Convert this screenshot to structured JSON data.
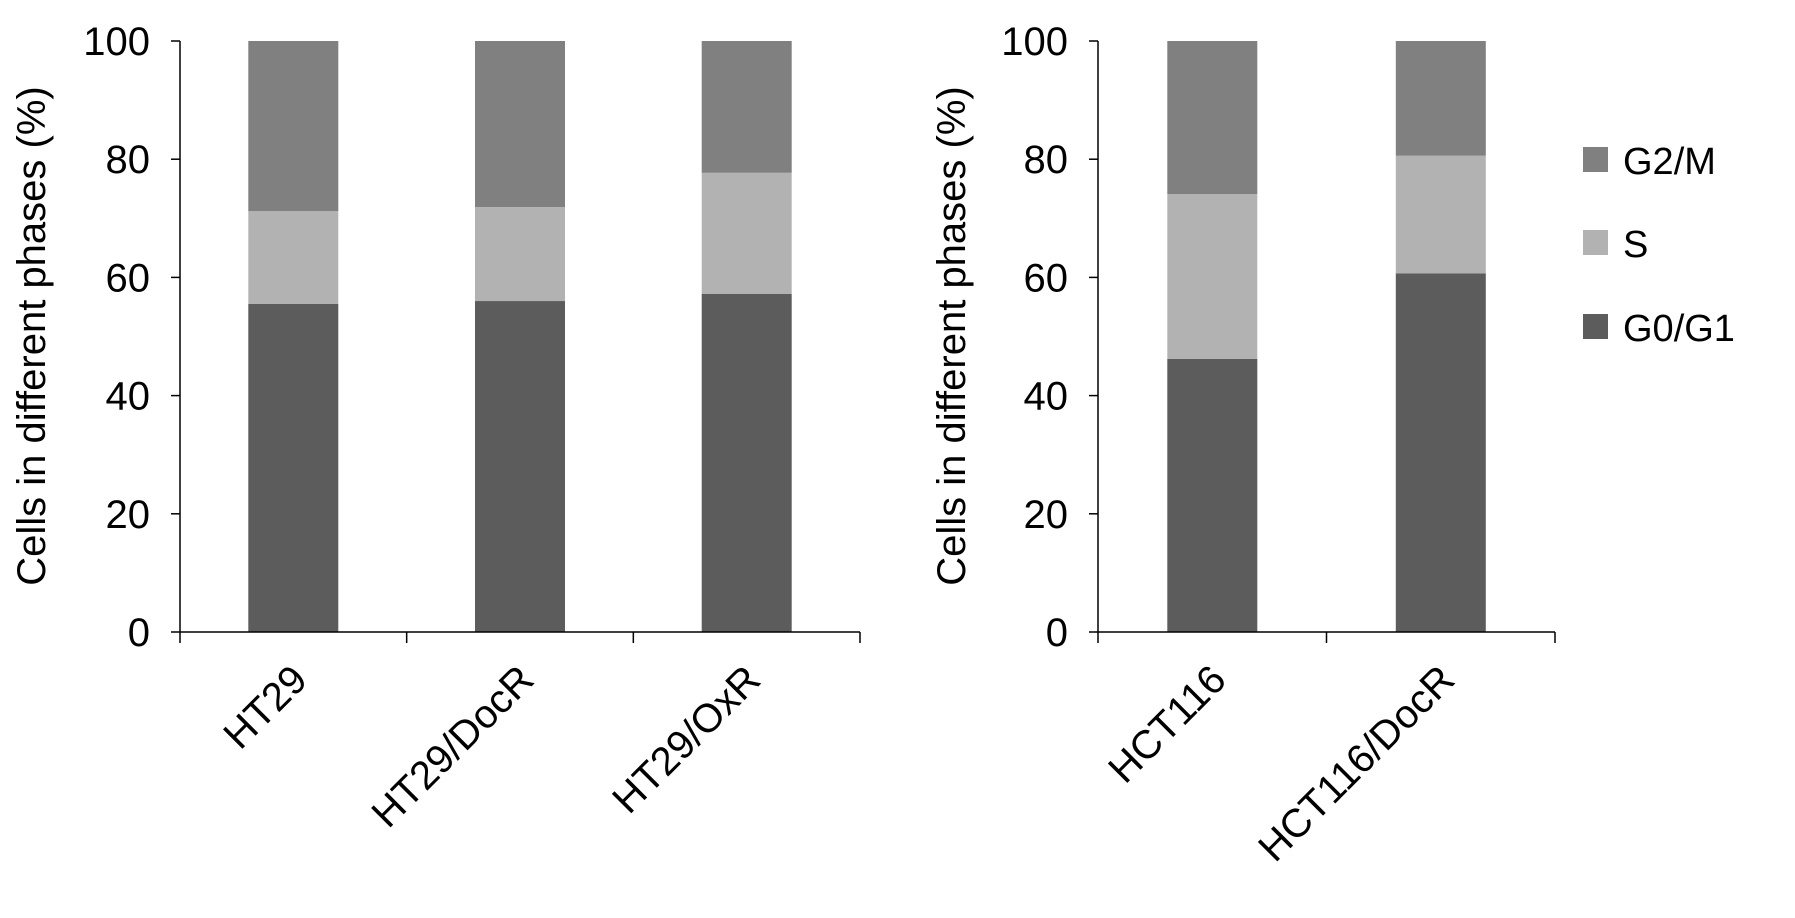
{
  "legend": [
    {
      "name": "G2/M",
      "color": "#808080"
    },
    {
      "name": "S",
      "color": "#b2b2b2"
    },
    {
      "name": "G0/G1",
      "color": "#5c5c5c"
    }
  ],
  "chart_data": [
    {
      "type": "bar",
      "stacked": true,
      "ylabel": "Cells in different phases (%)",
      "xlabel": "",
      "ylim": [
        0,
        100
      ],
      "yticks": [
        "0",
        "20",
        "40",
        "60",
        "80",
        "100"
      ],
      "categories": [
        "HT29",
        "HT29/DocR",
        "HT29/OxR"
      ],
      "series": [
        {
          "name": "G0/G1",
          "color": "#5c5c5c",
          "values": [
            55.5,
            56,
            57.2
          ]
        },
        {
          "name": "S",
          "color": "#b2b2b2",
          "values": [
            15.7,
            15.9,
            20.5
          ]
        },
        {
          "name": "G2/M",
          "color": "#808080",
          "values": [
            28.8,
            28.1,
            22.3
          ]
        }
      ],
      "grid": false
    },
    {
      "type": "bar",
      "stacked": true,
      "ylabel": "Cells in different phases (%)",
      "xlabel": "",
      "ylim": [
        0,
        100
      ],
      "yticks": [
        "0",
        "20",
        "40",
        "60",
        "80",
        "100"
      ],
      "categories": [
        "HCT116",
        "HCT116/DocR"
      ],
      "series": [
        {
          "name": "G0/G1",
          "color": "#5c5c5c",
          "values": [
            46.2,
            60.7
          ]
        },
        {
          "name": "S",
          "color": "#b2b2b2",
          "values": [
            27.9,
            19.9
          ]
        },
        {
          "name": "G2/M",
          "color": "#808080",
          "values": [
            25.9,
            19.4
          ]
        }
      ],
      "grid": false,
      "legend_position": "right"
    }
  ]
}
